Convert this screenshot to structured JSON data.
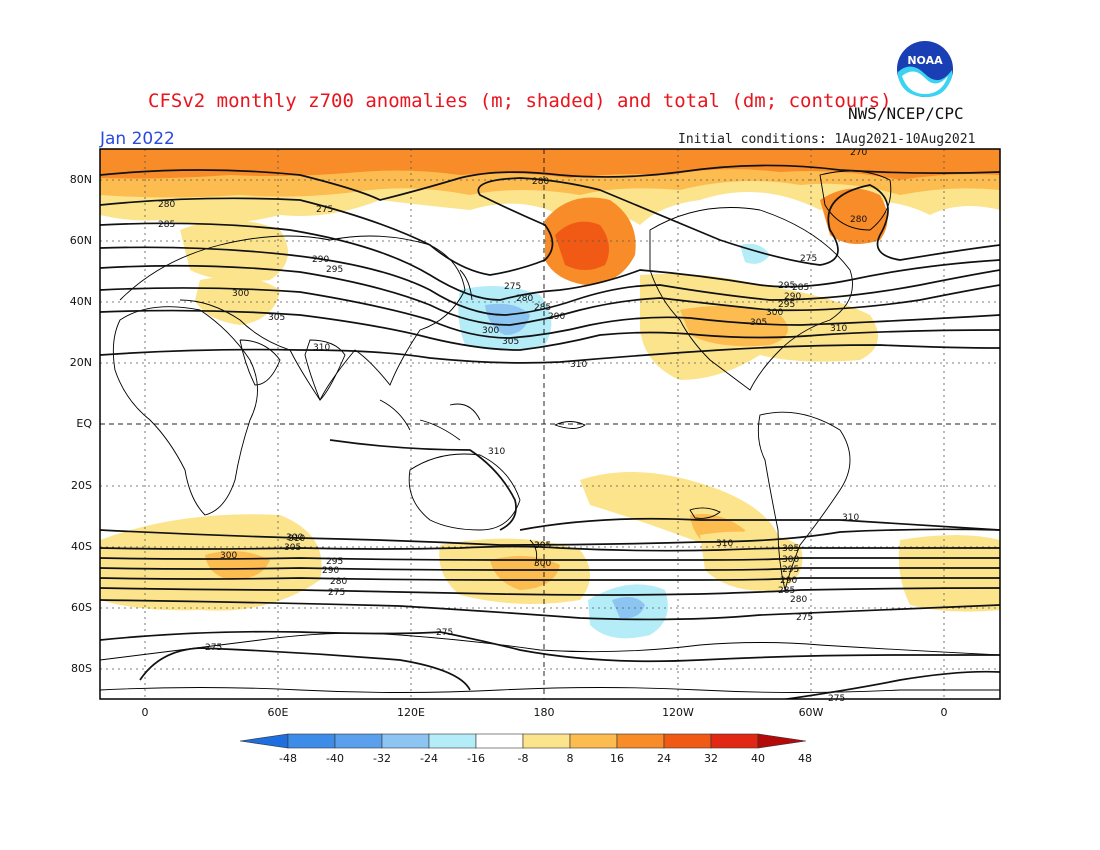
{
  "title": "CFSv2 monthly z700 anomalies (m; shaded) and total (dm; contours)",
  "agency": "NWS/NCEP/CPC",
  "month": "Jan 2022",
  "initial_conditions": "Initial conditions: 1Aug2021-10Aug2021",
  "logo_text": "NOAA",
  "lat_labels": [
    "80N",
    "60N",
    "40N",
    "20N",
    "EQ",
    "20S",
    "40S",
    "60S",
    "80S"
  ],
  "lon_labels": [
    "0",
    "60E",
    "120E",
    "180",
    "120W",
    "60W",
    "0"
  ],
  "colorbar": {
    "labels": [
      "-48",
      "-40",
      "-32",
      "-24",
      "-16",
      "-8",
      "8",
      "16",
      "24",
      "32",
      "40",
      "48"
    ],
    "colors": [
      "#1e6ee0",
      "#3c8ce8",
      "#5aa0ec",
      "#8cc4f2",
      "#b4ecf8",
      "#ffffff",
      "#fce48c",
      "#fcbc50",
      "#f88c28",
      "#f05a14",
      "#e02814",
      "#b40a0a"
    ]
  },
  "contour_labels": {
    "a": "275",
    "b": "280",
    "c": "285",
    "d": "290",
    "e": "295",
    "f": "300",
    "g": "305",
    "h": "310",
    "i": "310",
    "j": "310",
    "k": "310",
    "l": "280",
    "m": "275",
    "n": "280",
    "o": "285",
    "p": "300",
    "q": "305",
    "r": "290",
    "s": "295",
    "t": "300",
    "u": "305",
    "v": "310",
    "w": "275",
    "x": "280",
    "y": "285",
    "z": "290",
    "aa": "295",
    "ab": "300",
    "ac": "305",
    "ad": "310",
    "ae": "305",
    "af": "300",
    "ag": "295",
    "ah": "290",
    "ai": "280",
    "aj": "275",
    "ak": "305",
    "al": "300",
    "am": "310",
    "an": "305",
    "ao": "300",
    "ap": "295",
    "aq": "290",
    "ar": "285",
    "as": "280",
    "at": "275",
    "au": "310",
    "av": "275",
    "aw": "275",
    "ax": "270",
    "ay": "275",
    "az": "310",
    "ba": "280"
  },
  "chart_data": {
    "type": "map",
    "variable": "z700",
    "contour_interval_dm": 5,
    "colorbar_levels": [
      -48,
      -40,
      -32,
      -24,
      -16,
      -8,
      8,
      16,
      24,
      32,
      40,
      48
    ]
  }
}
